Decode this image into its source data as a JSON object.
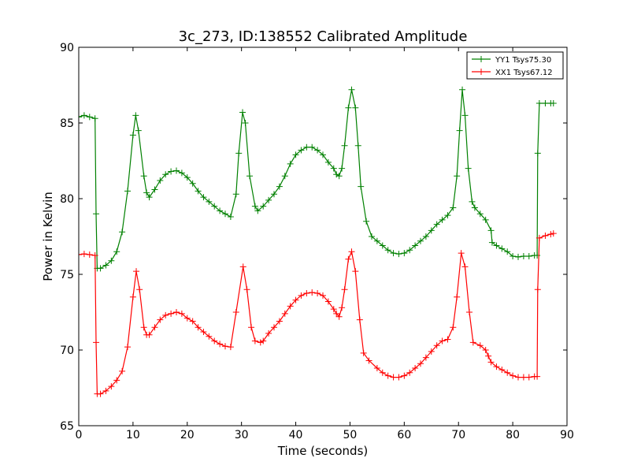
{
  "chart_data": {
    "type": "line",
    "title": "3c_273, ID:138552 Calibrated Amplitude",
    "xlabel": "Time (seconds)",
    "ylabel": "Power in Kelvin",
    "xlim": [
      0,
      90
    ],
    "ylim": [
      65,
      90
    ],
    "xticks": [
      0,
      10,
      20,
      30,
      40,
      50,
      60,
      70,
      80,
      90
    ],
    "yticks": [
      65,
      70,
      75,
      80,
      85,
      90
    ],
    "grid": false,
    "legend_position": "top-right",
    "marker": "+",
    "series": [
      {
        "name": "YY1 Tsys75.30",
        "color": "#008000",
        "points": [
          [
            0,
            85.4
          ],
          [
            1,
            85.5
          ],
          [
            2,
            85.4
          ],
          [
            3,
            85.3
          ],
          [
            3.2,
            79
          ],
          [
            3.4,
            75.4
          ],
          [
            4,
            75.4
          ],
          [
            5,
            75.6
          ],
          [
            6,
            75.9
          ],
          [
            7,
            76.5
          ],
          [
            8,
            77.8
          ],
          [
            9,
            80.5
          ],
          [
            10,
            84.2
          ],
          [
            10.5,
            85.5
          ],
          [
            11,
            84.5
          ],
          [
            12,
            81.5
          ],
          [
            12.5,
            80.4
          ],
          [
            13,
            80.1
          ],
          [
            14,
            80.6
          ],
          [
            15,
            81.2
          ],
          [
            16,
            81.6
          ],
          [
            17,
            81.8
          ],
          [
            18,
            81.85
          ],
          [
            19,
            81.7
          ],
          [
            20,
            81.4
          ],
          [
            21,
            81
          ],
          [
            22,
            80.5
          ],
          [
            23,
            80.1
          ],
          [
            24,
            79.8
          ],
          [
            25,
            79.5
          ],
          [
            26,
            79.2
          ],
          [
            27,
            79
          ],
          [
            28,
            78.8
          ],
          [
            29,
            80.3
          ],
          [
            29.5,
            83
          ],
          [
            30.2,
            85.7
          ],
          [
            30.7,
            85
          ],
          [
            31.5,
            81.5
          ],
          [
            32.5,
            79.5
          ],
          [
            33,
            79.2
          ],
          [
            34,
            79.5
          ],
          [
            35,
            79.9
          ],
          [
            36,
            80.3
          ],
          [
            37,
            80.8
          ],
          [
            38,
            81.5
          ],
          [
            39,
            82.3
          ],
          [
            40,
            82.9
          ],
          [
            41,
            83.2
          ],
          [
            42,
            83.4
          ],
          [
            43,
            83.4
          ],
          [
            44,
            83.2
          ],
          [
            45,
            82.9
          ],
          [
            46,
            82.4
          ],
          [
            47,
            82
          ],
          [
            47.5,
            81.6
          ],
          [
            48,
            81.5
          ],
          [
            48.5,
            82
          ],
          [
            49,
            83.5
          ],
          [
            49.7,
            86
          ],
          [
            50.3,
            87.2
          ],
          [
            51,
            86
          ],
          [
            51.5,
            83.5
          ],
          [
            52,
            80.8
          ],
          [
            53,
            78.5
          ],
          [
            54,
            77.5
          ],
          [
            55,
            77.2
          ],
          [
            56,
            76.9
          ],
          [
            57,
            76.6
          ],
          [
            58,
            76.4
          ],
          [
            59,
            76.35
          ],
          [
            60,
            76.4
          ],
          [
            61,
            76.6
          ],
          [
            62,
            76.9
          ],
          [
            63,
            77.2
          ],
          [
            64,
            77.5
          ],
          [
            65,
            77.9
          ],
          [
            66,
            78.3
          ],
          [
            67,
            78.6
          ],
          [
            68,
            78.9
          ],
          [
            69,
            79.4
          ],
          [
            69.7,
            81.5
          ],
          [
            70.2,
            84.5
          ],
          [
            70.7,
            87.2
          ],
          [
            71.2,
            85.5
          ],
          [
            71.8,
            82
          ],
          [
            72.5,
            79.8
          ],
          [
            73,
            79.4
          ],
          [
            74,
            79
          ],
          [
            75,
            78.6
          ],
          [
            76,
            77.9
          ],
          [
            76.2,
            77.1
          ],
          [
            77,
            76.9
          ],
          [
            78,
            76.7
          ],
          [
            79,
            76.5
          ],
          [
            80,
            76.2
          ],
          [
            81,
            76.15
          ],
          [
            82,
            76.2
          ],
          [
            83,
            76.2
          ],
          [
            84,
            76.25
          ],
          [
            84.5,
            76.25
          ],
          [
            84.6,
            83
          ],
          [
            84.9,
            86.3
          ],
          [
            86,
            86.3
          ],
          [
            87,
            86.3
          ],
          [
            87.5,
            86.3
          ]
        ]
      },
      {
        "name": "XX1 Tsys67.12",
        "color": "#ff0000",
        "points": [
          [
            0,
            76.3
          ],
          [
            1,
            76.35
          ],
          [
            2,
            76.3
          ],
          [
            3,
            76.25
          ],
          [
            3.2,
            70.5
          ],
          [
            3.4,
            67.1
          ],
          [
            4,
            67.1
          ],
          [
            5,
            67.3
          ],
          [
            6,
            67.6
          ],
          [
            7,
            68
          ],
          [
            8,
            68.6
          ],
          [
            9,
            70.2
          ],
          [
            10,
            73.5
          ],
          [
            10.6,
            75.2
          ],
          [
            11.2,
            74
          ],
          [
            12,
            71.5
          ],
          [
            12.5,
            71
          ],
          [
            13,
            71
          ],
          [
            14,
            71.5
          ],
          [
            15,
            72
          ],
          [
            16,
            72.3
          ],
          [
            17,
            72.4
          ],
          [
            18,
            72.5
          ],
          [
            19,
            72.4
          ],
          [
            20,
            72.1
          ],
          [
            21,
            71.9
          ],
          [
            22,
            71.5
          ],
          [
            23,
            71.2
          ],
          [
            24,
            70.9
          ],
          [
            25,
            70.6
          ],
          [
            26,
            70.4
          ],
          [
            27,
            70.25
          ],
          [
            28,
            70.2
          ],
          [
            29,
            72.5
          ],
          [
            30.3,
            75.5
          ],
          [
            31,
            74
          ],
          [
            31.8,
            71.5
          ],
          [
            32.5,
            70.6
          ],
          [
            33.5,
            70.5
          ],
          [
            34,
            70.6
          ],
          [
            35,
            71.1
          ],
          [
            36,
            71.5
          ],
          [
            37,
            71.9
          ],
          [
            38,
            72.4
          ],
          [
            39,
            72.9
          ],
          [
            40,
            73.3
          ],
          [
            41,
            73.6
          ],
          [
            42,
            73.75
          ],
          [
            43,
            73.8
          ],
          [
            44,
            73.75
          ],
          [
            45,
            73.6
          ],
          [
            46,
            73.2
          ],
          [
            47,
            72.7
          ],
          [
            47.5,
            72.4
          ],
          [
            48,
            72.2
          ],
          [
            48.5,
            72.8
          ],
          [
            49,
            74
          ],
          [
            49.7,
            76
          ],
          [
            50.3,
            76.5
          ],
          [
            51,
            75.2
          ],
          [
            51.8,
            72
          ],
          [
            52.5,
            69.8
          ],
          [
            53.5,
            69.3
          ],
          [
            55,
            68.8
          ],
          [
            56,
            68.5
          ],
          [
            57,
            68.3
          ],
          [
            58,
            68.2
          ],
          [
            59,
            68.2
          ],
          [
            60,
            68.3
          ],
          [
            61,
            68.5
          ],
          [
            62,
            68.8
          ],
          [
            63,
            69.1
          ],
          [
            64,
            69.5
          ],
          [
            65,
            69.9
          ],
          [
            66,
            70.3
          ],
          [
            67,
            70.6
          ],
          [
            68,
            70.7
          ],
          [
            69,
            71.5
          ],
          [
            69.7,
            73.5
          ],
          [
            70.5,
            76.4
          ],
          [
            71.2,
            75.5
          ],
          [
            72,
            72.5
          ],
          [
            72.7,
            70.5
          ],
          [
            74,
            70.3
          ],
          [
            75,
            70
          ],
          [
            75.5,
            69.6
          ],
          [
            76,
            69.2
          ],
          [
            77,
            68.9
          ],
          [
            78,
            68.7
          ],
          [
            79,
            68.5
          ],
          [
            80,
            68.3
          ],
          [
            81,
            68.2
          ],
          [
            82,
            68.2
          ],
          [
            83,
            68.2
          ],
          [
            84,
            68.25
          ],
          [
            84.5,
            68.25
          ],
          [
            84.6,
            74
          ],
          [
            84.9,
            77.4
          ],
          [
            86,
            77.55
          ],
          [
            87,
            77.65
          ],
          [
            87.5,
            77.7
          ]
        ]
      }
    ]
  }
}
